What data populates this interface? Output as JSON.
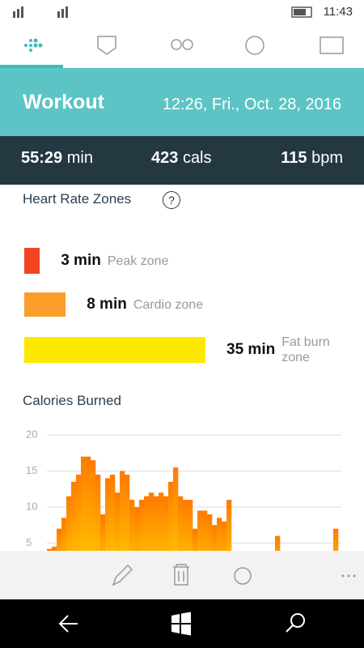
{
  "status_bar": {
    "time": "11:43"
  },
  "header": {
    "title": "Workout",
    "datetime": "12:26, Fri., Oct. 28, 2016"
  },
  "stats": [
    {
      "value": "55:29",
      "unit": "min"
    },
    {
      "value": "423",
      "unit": "cals"
    },
    {
      "value": "115",
      "unit": "bpm"
    }
  ],
  "zones": {
    "title": "Heart Rate Zones",
    "help": "?",
    "items": [
      {
        "minutes": 3,
        "unit": "min",
        "name": "Peak zone",
        "color": "#f4431f"
      },
      {
        "minutes": 8,
        "unit": "min",
        "name": "Cardio zone",
        "color": "#fb9d2a"
      },
      {
        "minutes": 35,
        "unit": "min",
        "name": "Fat burn zone",
        "color": "#ffe800"
      }
    ]
  },
  "chart_data": {
    "type": "bar",
    "title": "Calories Burned",
    "values": [
      4.2,
      4.5,
      7,
      8.5,
      11.5,
      13.5,
      14.5,
      17,
      17,
      16.5,
      14.5,
      9,
      14,
      14.5,
      12,
      15,
      14.5,
      11,
      10,
      11,
      11.5,
      12,
      11.5,
      12,
      11.5,
      13.5,
      15.5,
      11.5,
      11,
      11,
      7,
      9.5,
      9.5,
      9,
      7.5,
      8.5,
      8,
      11,
      0,
      0,
      0,
      0,
      0,
      0,
      0,
      0,
      0,
      6,
      0,
      0,
      0,
      0,
      0,
      0,
      0,
      0,
      0,
      0,
      0,
      7
    ],
    "colors": [
      "#ff7a00",
      "#ffd000"
    ],
    "ylim": [
      0,
      20
    ],
    "yticks": [
      5,
      10,
      15,
      20
    ],
    "grid": true
  }
}
